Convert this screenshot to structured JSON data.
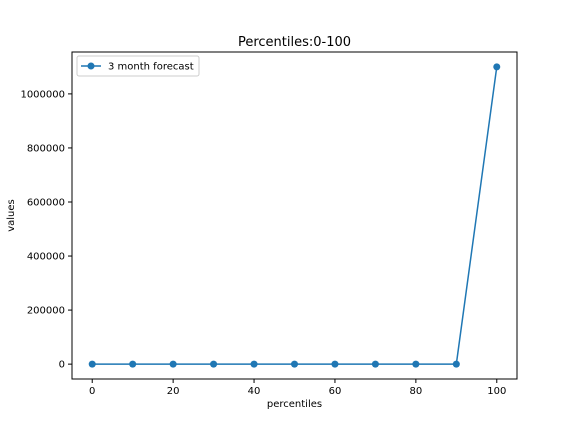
{
  "chart_data": {
    "type": "line",
    "title": "Percentiles:0-100",
    "xlabel": "percentiles",
    "ylabel": "values",
    "xlim": [
      -5,
      105
    ],
    "ylim": [
      -55000,
      1155000
    ],
    "xticks": [
      0,
      20,
      40,
      60,
      80,
      100
    ],
    "yticks": [
      0,
      200000,
      400000,
      600000,
      800000,
      1000000
    ],
    "xtick_labels": [
      "0",
      "20",
      "40",
      "60",
      "80",
      "100"
    ],
    "ytick_labels": [
      "0",
      "200000",
      "400000",
      "600000",
      "800000",
      "1000000"
    ],
    "grid": false,
    "legend": {
      "position": "top-left"
    },
    "series": [
      {
        "name": "3 month forecast",
        "color": "#1f77b4",
        "marker": "circle",
        "x": [
          0,
          10,
          20,
          30,
          40,
          50,
          60,
          70,
          80,
          90,
          100
        ],
        "y": [
          0,
          0,
          0,
          0,
          0,
          0,
          0,
          0,
          0,
          0,
          1100000
        ]
      }
    ]
  }
}
